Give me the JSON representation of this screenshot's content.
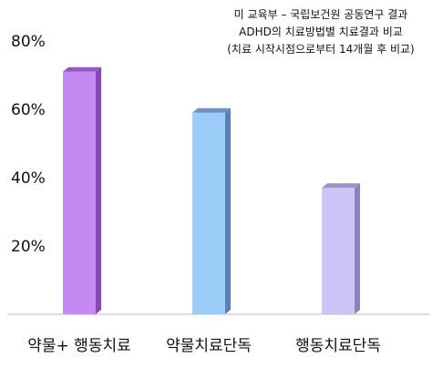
{
  "chart_data": {
    "type": "bar",
    "title_lines": [
      "미 교육부 – 국립보건원 공동연구 결과",
      "ADHD의 치료방법별 치료결과 비교",
      "(치료 시작시점으로부터 14개월 후 비교)"
    ],
    "categories": [
      "약물+ 행동치료",
      "약물치료단독",
      "행동치료단독"
    ],
    "values": [
      71,
      59,
      37
    ],
    "bar_colors": [
      "#c489f2",
      "#9ccdf8",
      "#cbc4f6"
    ],
    "bar_top_colors": [
      "#9458c4",
      "#6f90c2",
      "#9b94c8"
    ],
    "bar_side_colors": [
      "#8a45b6",
      "#5f7fb4",
      "#8b84ba"
    ],
    "ylim": [
      0,
      80
    ],
    "yticks": [
      20,
      40,
      60,
      80
    ],
    "ytick_labels": [
      "20%",
      "40%",
      "60%",
      "80%"
    ],
    "xlabel": "",
    "ylabel": "",
    "grid": false,
    "legend": "none"
  }
}
